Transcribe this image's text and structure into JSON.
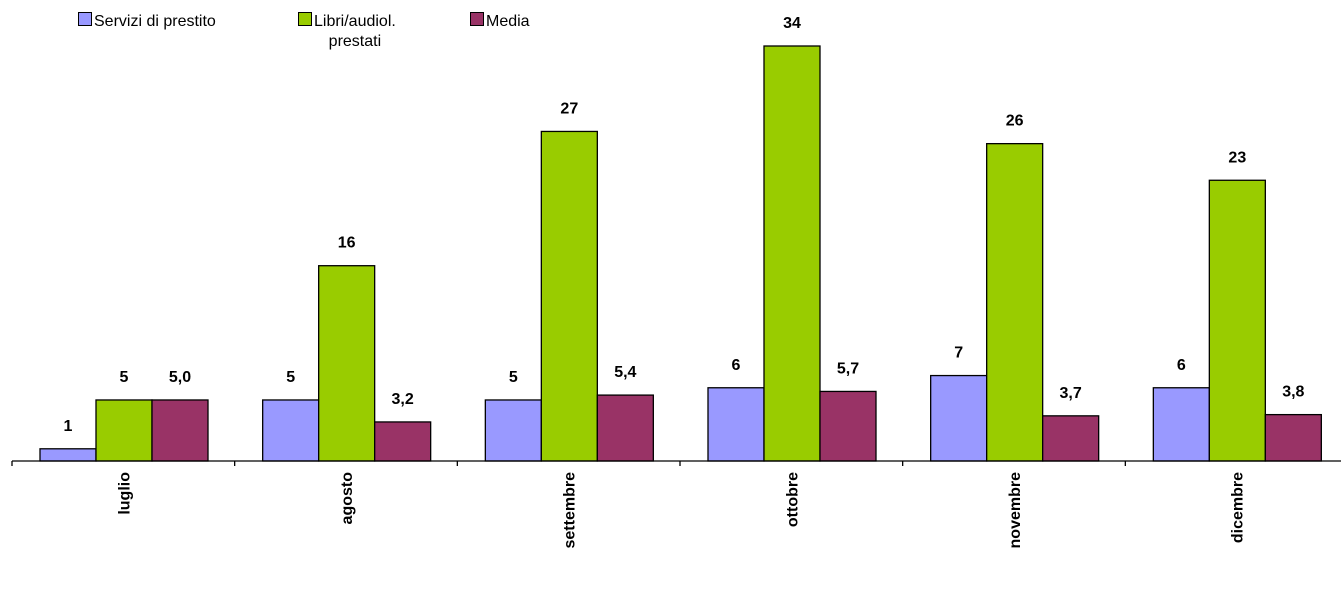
{
  "chart_data": {
    "type": "bar",
    "categories": [
      "luglio",
      "agosto",
      "settembre",
      "ottobre",
      "novembre",
      "dicembre"
    ],
    "series": [
      {
        "name": "Servizi di prestito",
        "color": "#9999ff",
        "values": [
          1,
          5,
          5,
          6,
          7,
          6
        ],
        "labels": [
          "1",
          "5",
          "5",
          "6",
          "7",
          "6"
        ]
      },
      {
        "name": "Libri/audiol. prestati",
        "color": "#99cc00",
        "values": [
          5,
          16,
          27,
          34,
          26,
          23
        ],
        "labels": [
          "5",
          "16",
          "27",
          "34",
          "26",
          "23"
        ]
      },
      {
        "name": "Media",
        "color": "#993366",
        "values": [
          5.0,
          3.2,
          5.4,
          5.7,
          3.7,
          3.8
        ],
        "labels": [
          "5,0",
          "3,2",
          "5,4",
          "5,7",
          "3,7",
          "3,8"
        ]
      }
    ],
    "ylim": [
      0,
      34
    ],
    "grid": false,
    "legend_position": "top-left"
  },
  "legend": [
    {
      "label": "Servizi di prestito",
      "color": "#9999ff"
    },
    {
      "label": "Libri/audiol.\nprestati",
      "color": "#99cc00"
    },
    {
      "label": "Media",
      "color": "#993366"
    }
  ]
}
